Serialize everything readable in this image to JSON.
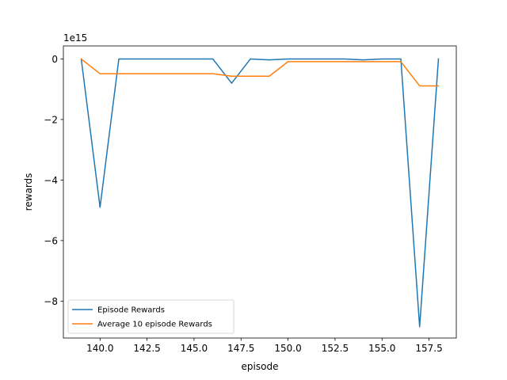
{
  "chart_data": {
    "type": "line",
    "title": "",
    "xlabel": "episode",
    "ylabel": "rewards",
    "y_offset_label": "1e15",
    "xlim": [
      138.05,
      158.95
    ],
    "ylim": [
      -9.22,
      0.43
    ],
    "x_ticks": [
      140.0,
      142.5,
      145.0,
      147.5,
      150.0,
      152.5,
      155.0,
      157.5
    ],
    "x_tick_labels": [
      "140.0",
      "142.5",
      "145.0",
      "147.5",
      "150.0",
      "152.5",
      "155.0",
      "157.5"
    ],
    "y_ticks": [
      0,
      -2,
      -4,
      -6,
      -8
    ],
    "y_tick_labels": [
      "0",
      "−2",
      "−4",
      "−6",
      "−8"
    ],
    "grid": false,
    "legend_position": "lower-left",
    "x": [
      139,
      140,
      141,
      142,
      143,
      144,
      145,
      146,
      147,
      148,
      149,
      150,
      151,
      152,
      153,
      154,
      155,
      156,
      157,
      158
    ],
    "series": [
      {
        "name": "Episode Rewards",
        "color": "#1f77b4",
        "values": [
          0,
          -4.9,
          0,
          0,
          0,
          0,
          0,
          0,
          -0.8,
          0,
          -0.03,
          0,
          0,
          0,
          0,
          -0.03,
          0,
          0,
          -8.85,
          0
        ]
      },
      {
        "name": "Average 10 episode Rewards",
        "color": "#ff7f0e",
        "values": [
          0,
          -0.49,
          -0.49,
          -0.49,
          -0.49,
          -0.49,
          -0.49,
          -0.49,
          -0.57,
          -0.57,
          -0.57,
          -0.09,
          -0.09,
          -0.09,
          -0.09,
          -0.09,
          -0.09,
          -0.09,
          -0.89,
          -0.89
        ]
      }
    ]
  }
}
